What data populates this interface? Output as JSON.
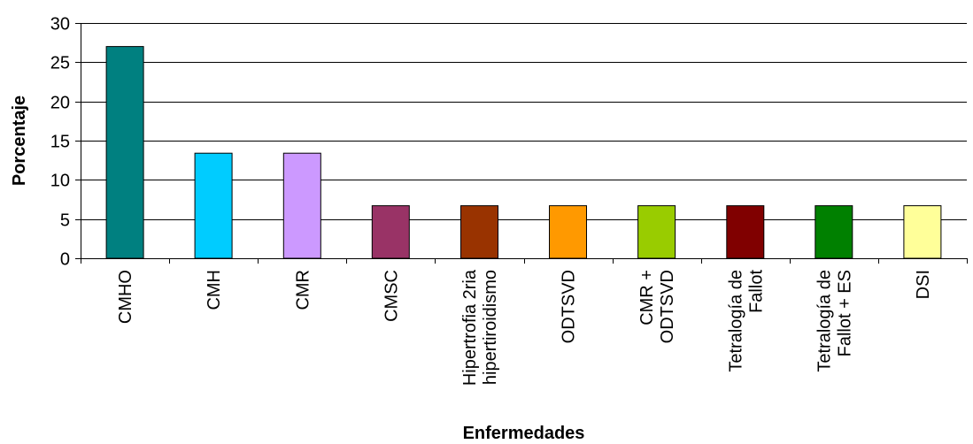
{
  "chart_data": {
    "type": "bar",
    "title": "",
    "xlabel": "Enfermedades",
    "ylabel": "Porcentaje",
    "ylim": [
      0,
      30
    ],
    "yticks": [
      0,
      5,
      10,
      15,
      20,
      25,
      30
    ],
    "grid": true,
    "legend": "none",
    "categories": [
      [
        "CMHO"
      ],
      [
        "CMH"
      ],
      [
        "CMR"
      ],
      [
        "CMSC"
      ],
      [
        "Hipertrofia 2ria",
        "hipertiroidismo"
      ],
      [
        "ODTSVD"
      ],
      [
        "CMR +",
        "ODTSVD"
      ],
      [
        "Tetralogía de",
        "Fallot"
      ],
      [
        "Tetralogía de",
        "Fallot + ES"
      ],
      [
        "DSI"
      ]
    ],
    "values": [
      27.0,
      13.4,
      13.4,
      6.7,
      6.7,
      6.7,
      6.7,
      6.7,
      6.7,
      6.7
    ],
    "colors": [
      "#008080",
      "#00CCFF",
      "#CC99FF",
      "#993366",
      "#993300",
      "#FF9900",
      "#99CC00",
      "#800000",
      "#008000",
      "#FFFF99"
    ]
  }
}
